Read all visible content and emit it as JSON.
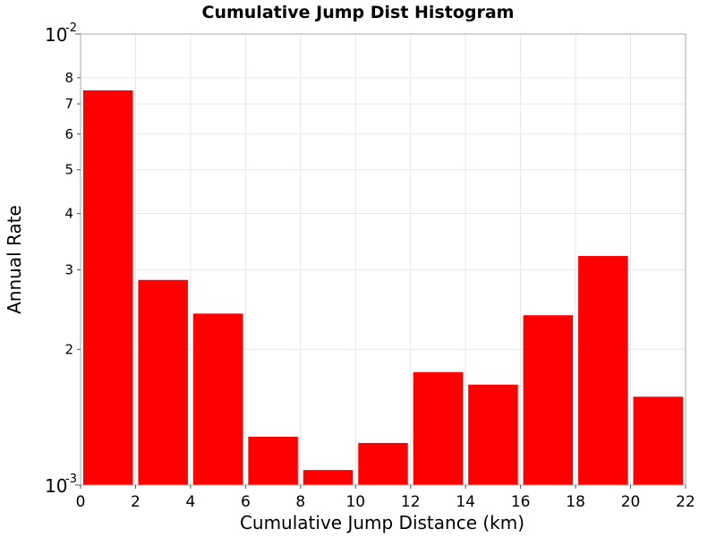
{
  "chart_data": {
    "type": "bar",
    "title": "Cumulative Jump Dist Histogram",
    "xlabel": "Cumulative Jump Distance (km)",
    "ylabel": "Annual Rate",
    "x_scale": "linear",
    "y_scale": "log",
    "xlim": [
      0,
      22
    ],
    "ylim": [
      0.001,
      0.01
    ],
    "grid": true,
    "bin_width": 2,
    "bin_centers": [
      1,
      3,
      5,
      7,
      9,
      11,
      13,
      15,
      17,
      19,
      21
    ],
    "values": [
      0.0075,
      0.00285,
      0.0024,
      0.00128,
      0.00108,
      0.00124,
      0.00178,
      0.00167,
      0.00238,
      0.00322,
      0.00157
    ],
    "bar_color": "#ff0000",
    "x_ticks": [
      "0",
      "2",
      "4",
      "6",
      "8",
      "10",
      "12",
      "14",
      "16",
      "18",
      "20",
      "22"
    ],
    "y_minor_ticks": [
      {
        "value": 0.002,
        "label": "2"
      },
      {
        "value": 0.003,
        "label": "3"
      },
      {
        "value": 0.004,
        "label": "4"
      },
      {
        "value": 0.005,
        "label": "5"
      },
      {
        "value": 0.006,
        "label": "6"
      },
      {
        "value": 0.007,
        "label": "7"
      },
      {
        "value": 0.008,
        "label": "8"
      }
    ],
    "y_decades": [
      {
        "value": 0.001,
        "base": "10",
        "exp": "-3"
      },
      {
        "value": 0.01,
        "base": "10",
        "exp": "-2"
      }
    ]
  }
}
